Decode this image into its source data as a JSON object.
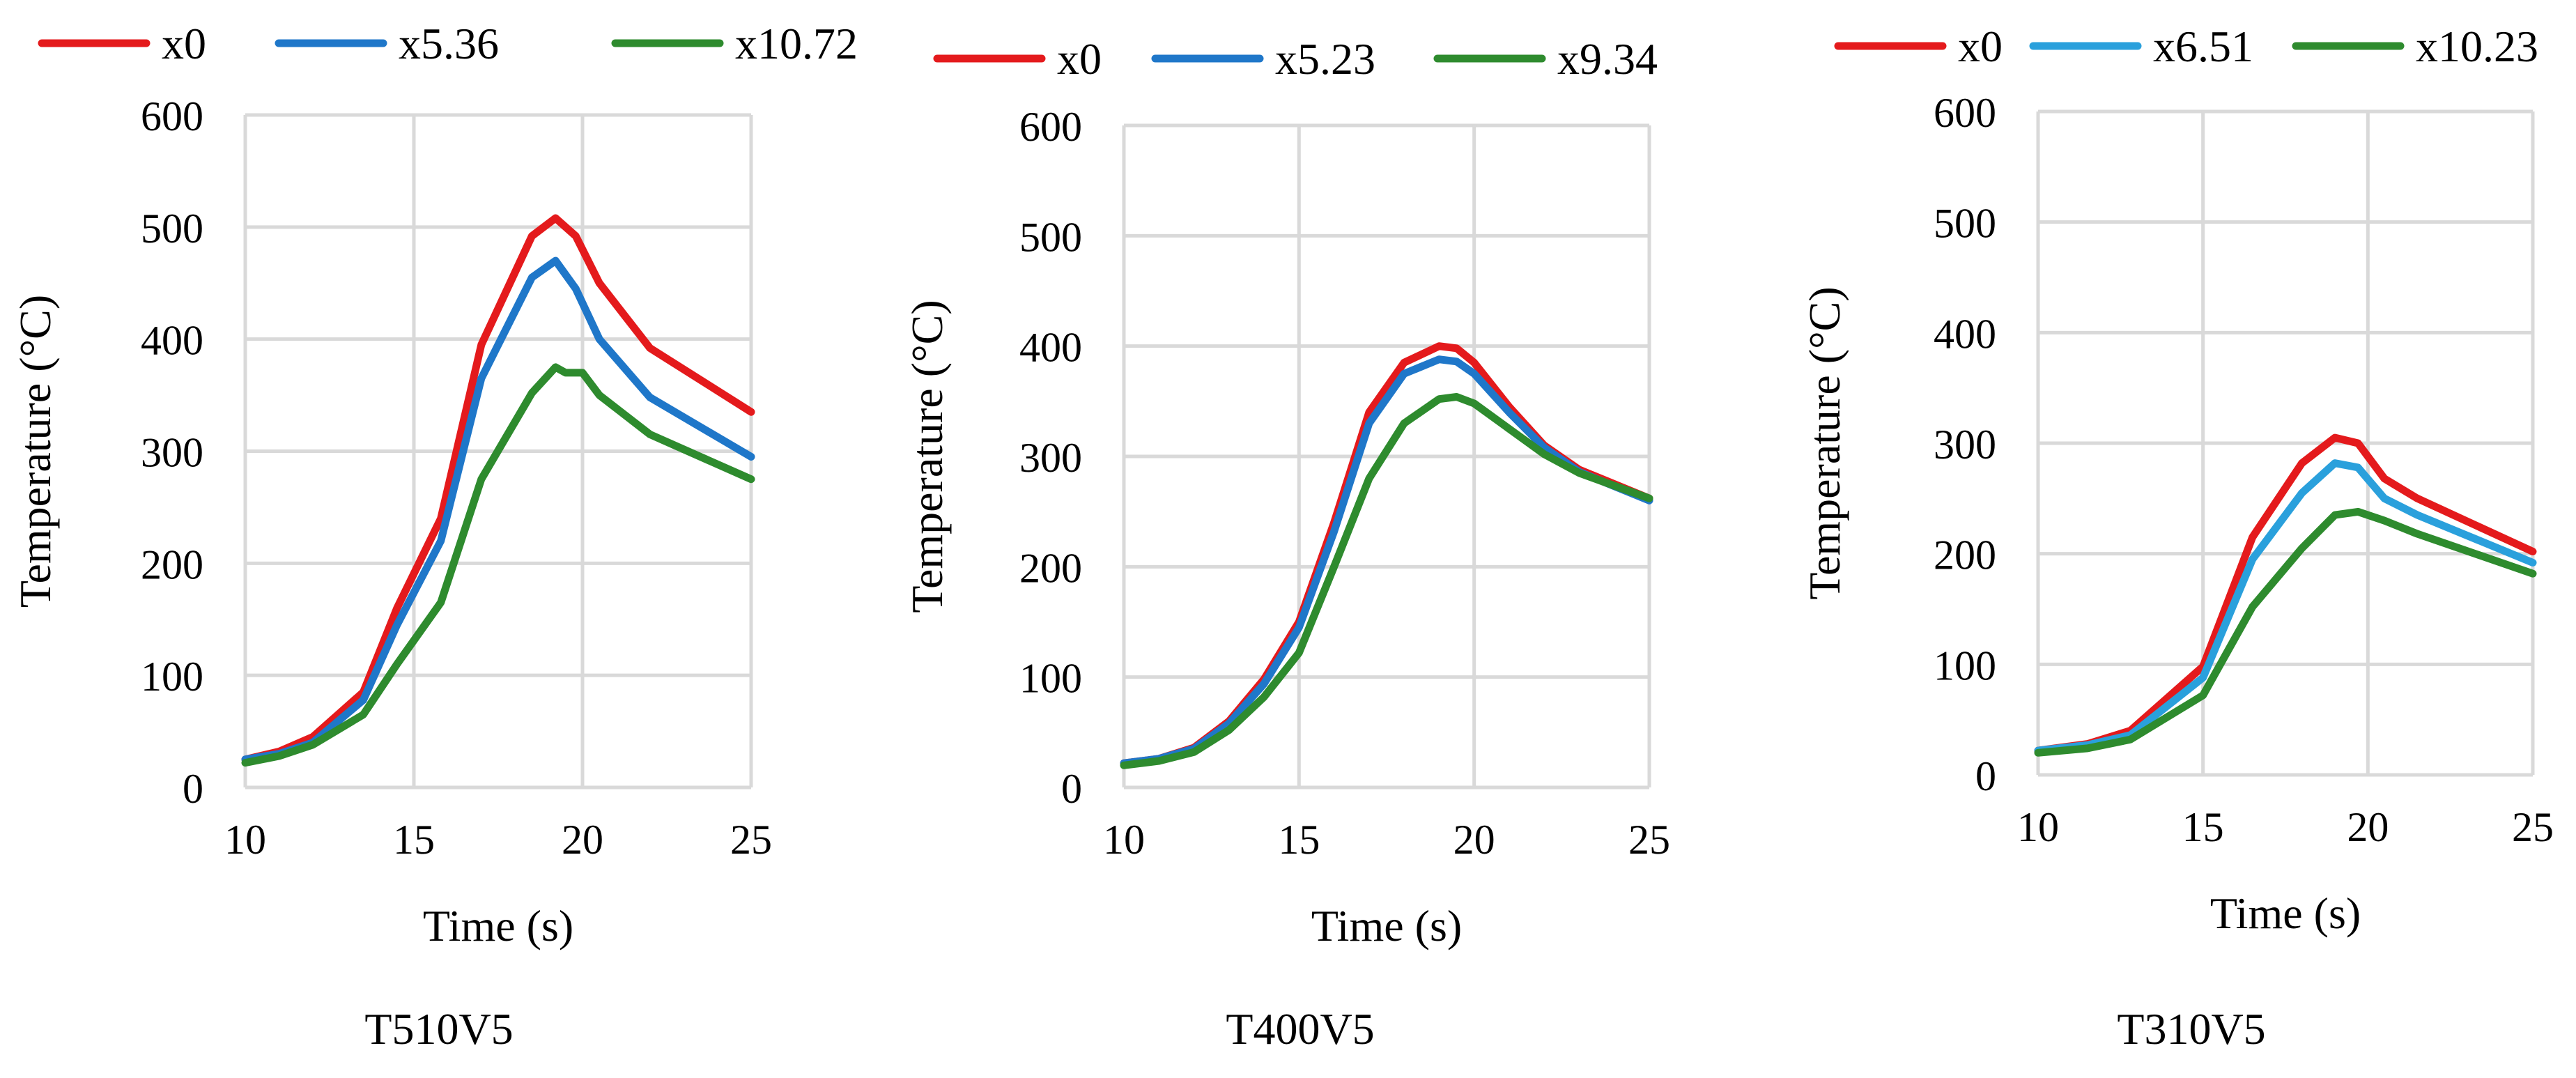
{
  "chart_data": [
    {
      "type": "line",
      "caption": "T510V5",
      "xlabel": "Time (s)",
      "ylabel": "Temperature (°C)",
      "xlim": [
        10,
        25
      ],
      "ylim": [
        0,
        600
      ],
      "xticks": [
        "10",
        "15",
        "20",
        "25"
      ],
      "yticks": [
        "0",
        "100",
        "200",
        "300",
        "400",
        "500",
        "600"
      ],
      "grid": true,
      "legend_position": "top",
      "series": [
        {
          "name": "x0",
          "color": "#e41a1c",
          "points": [
            [
              10,
              25
            ],
            [
              11,
              32
            ],
            [
              12,
              45
            ],
            [
              13.5,
              85
            ],
            [
              14.5,
              160
            ],
            [
              15.8,
              240
            ],
            [
              17,
              395
            ],
            [
              18.5,
              492
            ],
            [
              19.2,
              508
            ],
            [
              19.8,
              492
            ],
            [
              20.5,
              450
            ],
            [
              22,
              392
            ],
            [
              25,
              335
            ]
          ]
        },
        {
          "name": "x5.36",
          "color": "#1f77c9",
          "points": [
            [
              10,
              25
            ],
            [
              11,
              30
            ],
            [
              12,
              40
            ],
            [
              13.5,
              78
            ],
            [
              14.5,
              145
            ],
            [
              15.8,
              220
            ],
            [
              17,
              365
            ],
            [
              18.5,
              455
            ],
            [
              19.2,
              470
            ],
            [
              19.8,
              445
            ],
            [
              20.5,
              400
            ],
            [
              22,
              348
            ],
            [
              25,
              295
            ]
          ]
        },
        {
          "name": "x10.72",
          "color": "#2e8b2e",
          "points": [
            [
              10,
              22
            ],
            [
              11,
              28
            ],
            [
              12,
              38
            ],
            [
              13.5,
              65
            ],
            [
              14.5,
              110
            ],
            [
              15.8,
              165
            ],
            [
              17,
              275
            ],
            [
              18.5,
              352
            ],
            [
              19.2,
              375
            ],
            [
              19.5,
              370
            ],
            [
              20,
              370
            ],
            [
              20.5,
              350
            ],
            [
              22,
              315
            ],
            [
              25,
              275
            ]
          ]
        }
      ]
    },
    {
      "type": "line",
      "caption": "T400V5",
      "xlabel": "Time (s)",
      "ylabel": "Temperature (°C)",
      "xlim": [
        10,
        25
      ],
      "ylim": [
        0,
        600
      ],
      "xticks": [
        "10",
        "15",
        "20",
        "25"
      ],
      "yticks": [
        "0",
        "100",
        "200",
        "300",
        "400",
        "500",
        "600"
      ],
      "grid": true,
      "legend_position": "top",
      "series": [
        {
          "name": "x0",
          "color": "#e41a1c",
          "points": [
            [
              10,
              22
            ],
            [
              11,
              26
            ],
            [
              12,
              36
            ],
            [
              13,
              60
            ],
            [
              14,
              98
            ],
            [
              15,
              150
            ],
            [
              16,
              240
            ],
            [
              17,
              340
            ],
            [
              18,
              385
            ],
            [
              19,
              400
            ],
            [
              19.5,
              398
            ],
            [
              20,
              385
            ],
            [
              21,
              345
            ],
            [
              22,
              310
            ],
            [
              23,
              288
            ],
            [
              25,
              262
            ]
          ]
        },
        {
          "name": "x5.23",
          "color": "#1f77c9",
          "points": [
            [
              10,
              22
            ],
            [
              11,
              26
            ],
            [
              12,
              35
            ],
            [
              13,
              58
            ],
            [
              14,
              94
            ],
            [
              15,
              145
            ],
            [
              16,
              232
            ],
            [
              17,
              330
            ],
            [
              18,
              375
            ],
            [
              19,
              388
            ],
            [
              19.5,
              386
            ],
            [
              20,
              375
            ],
            [
              21,
              340
            ],
            [
              22,
              308
            ],
            [
              23,
              286
            ],
            [
              25,
              260
            ]
          ]
        },
        {
          "name": "x9.34",
          "color": "#2e8b2e",
          "points": [
            [
              10,
              20
            ],
            [
              11,
              24
            ],
            [
              12,
              32
            ],
            [
              13,
              52
            ],
            [
              14,
              82
            ],
            [
              15,
              122
            ],
            [
              16,
              200
            ],
            [
              17,
              280
            ],
            [
              18,
              330
            ],
            [
              19,
              352
            ],
            [
              19.5,
              354
            ],
            [
              20,
              348
            ],
            [
              21,
              325
            ],
            [
              22,
              302
            ],
            [
              23,
              285
            ],
            [
              25,
              262
            ]
          ]
        }
      ]
    },
    {
      "type": "line",
      "caption": "T310V5",
      "xlabel": "Time (s)",
      "ylabel": "Temperature (°C)",
      "xlim": [
        10,
        25
      ],
      "ylim": [
        0,
        600
      ],
      "xticks": [
        "10",
        "15",
        "20",
        "25"
      ],
      "yticks": [
        "0",
        "100",
        "200",
        "300",
        "400",
        "500",
        "600"
      ],
      "grid": true,
      "legend_position": "top",
      "series": [
        {
          "name": "x0",
          "color": "#e41a1c",
          "points": [
            [
              10,
              22
            ],
            [
              11.5,
              28
            ],
            [
              12.8,
              40
            ],
            [
              15,
              98
            ],
            [
              16.5,
              215
            ],
            [
              18,
              282
            ],
            [
              19,
              305
            ],
            [
              19.7,
              300
            ],
            [
              20.5,
              268
            ],
            [
              21.5,
              250
            ],
            [
              25,
              202
            ]
          ]
        },
        {
          "name": "x6.51",
          "color": "#2aa0dc",
          "points": [
            [
              10,
              22
            ],
            [
              11.5,
              27
            ],
            [
              12.8,
              36
            ],
            [
              15,
              88
            ],
            [
              16.5,
              195
            ],
            [
              18,
              255
            ],
            [
              19,
              282
            ],
            [
              19.7,
              278
            ],
            [
              20.5,
              250
            ],
            [
              21.5,
              235
            ],
            [
              25,
              192
            ]
          ]
        },
        {
          "name": "x10.23",
          "color": "#2e8b2e",
          "points": [
            [
              10,
              20
            ],
            [
              11.5,
              24
            ],
            [
              12.8,
              32
            ],
            [
              15,
              72
            ],
            [
              16.5,
              152
            ],
            [
              18,
              205
            ],
            [
              19,
              235
            ],
            [
              19.7,
              238
            ],
            [
              20.5,
              230
            ],
            [
              21.5,
              218
            ],
            [
              25,
              182
            ]
          ]
        }
      ]
    }
  ]
}
